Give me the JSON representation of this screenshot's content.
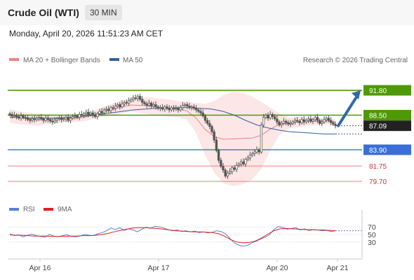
{
  "header": {
    "title": "Crude Oil (WTI)",
    "timeframe": "30 MIN"
  },
  "datetime": "Monday, April 20, 2026 11:51:23 AM CET",
  "legend": {
    "bollinger": "MA 20 + Bollinger Bands",
    "ma50": "MA 50",
    "credit": "Research © 2026 Trading Central",
    "rsi": "RSI",
    "rsi_ma": "9MA"
  },
  "colors": {
    "resistance": "#4e9a06",
    "support": "#3a6fd8",
    "support_secondary": "#f08080",
    "last_price": "#222222",
    "bollinger": "#f08080",
    "bollinger_fill": "#fde3e3",
    "ma50": "#34609a",
    "candle": "#555555",
    "forecast_arrow": "#2f67b1",
    "rsi": "#5b7fd0",
    "rsi_ma": "#e02020"
  },
  "chart_data": [
    {
      "type": "candlestick",
      "x_labels": [
        "Apr 16",
        "Apr 17",
        "Apr 20",
        "Apr 21"
      ],
      "ylim": [
        78.5,
        94.5
      ],
      "levels": [
        {
          "value": 91.8,
          "label": "91.80",
          "kind": "resistance"
        },
        {
          "value": 88.5,
          "label": "88.50",
          "kind": "resistance"
        },
        {
          "value": 87.09,
          "label": "87.09",
          "kind": "last"
        },
        {
          "value": 83.9,
          "label": "83.90",
          "kind": "support"
        },
        {
          "value": 81.75,
          "label": "81.75",
          "kind": "support_secondary"
        },
        {
          "value": 79.7,
          "label": "79.70",
          "kind": "support_secondary"
        }
      ],
      "close": [
        88.6,
        88.4,
        88.5,
        88.3,
        88.1,
        88.4,
        88.2,
        88.1,
        87.9,
        87.8,
        88.0,
        87.9,
        88.1,
        88.2,
        88.0,
        87.8,
        88.1,
        87.9,
        87.7,
        87.6,
        87.8,
        88.0,
        88.1,
        87.9,
        88.0,
        88.2,
        87.8,
        88.1,
        88.3,
        88.4,
        88.2,
        88.6,
        88.5,
        88.7,
        88.9,
        88.6,
        88.8,
        88.5,
        88.3,
        88.7,
        89.0,
        88.8,
        89.2,
        89.3,
        89.1,
        89.5,
        89.4,
        89.7,
        89.9,
        89.6,
        90.0,
        90.2,
        90.1,
        90.4,
        90.6,
        90.8,
        90.7,
        91.0,
        90.6,
        90.2,
        90.0,
        89.8,
        90.1,
        89.7,
        89.9,
        89.6,
        89.4,
        89.5,
        89.3,
        89.6,
        89.4,
        89.2,
        89.5,
        89.3,
        89.4,
        89.2,
        89.5,
        89.8,
        89.9,
        89.7,
        89.5,
        89.6,
        89.4,
        89.2,
        89.0,
        88.8,
        88.4,
        87.8,
        87.4,
        87.0,
        86.3,
        85.2,
        83.8,
        82.5,
        81.7,
        81.2,
        80.4,
        80.8,
        81.0,
        81.5,
        81.3,
        81.8,
        82.0,
        82.3,
        82.0,
        82.6,
        82.8,
        83.2,
        83.4,
        83.6,
        83.9,
        83.6,
        87.2,
        88.2,
        88.5,
        88.1,
        88.6,
        88.3,
        88.0,
        87.6,
        87.2,
        87.4,
        87.7,
        87.5,
        87.3,
        87.4,
        87.6,
        87.8,
        87.7,
        87.5,
        87.9,
        87.6,
        87.8,
        88.0,
        87.7,
        87.9,
        88.2,
        87.8,
        87.4,
        87.6,
        87.9,
        88.1,
        87.8,
        87.5,
        87.3,
        87.1
      ],
      "bollinger": {
        "upper": [
          89.3,
          89.0,
          88.8,
          88.7,
          88.6,
          88.6,
          88.5,
          88.6,
          88.7,
          89.1,
          89.6,
          90.0,
          90.5,
          90.7,
          90.8,
          90.9,
          90.7,
          90.6,
          90.4,
          90.3,
          90.1,
          90.0,
          90.4,
          91.2,
          91.6,
          91.5,
          91.0,
          90.3,
          89.5,
          88.7,
          88.2,
          88.3,
          88.2,
          88.1,
          88.2,
          87.9
        ],
        "lower": [
          87.5,
          87.3,
          87.2,
          87.1,
          87.3,
          87.4,
          87.5,
          87.6,
          87.7,
          88.0,
          88.3,
          88.4,
          88.7,
          89.0,
          88.8,
          88.6,
          88.4,
          88.3,
          88.2,
          87.9,
          86.2,
          83.2,
          80.8,
          79.4,
          79.1,
          79.3,
          79.9,
          81.3,
          83.8,
          85.9,
          86.7,
          86.9,
          87.1,
          87.2,
          87.3,
          87.3
        ]
      },
      "ma50": [
        88.2,
        88.2,
        88.1,
        88.1,
        88.1,
        88.2,
        88.3,
        88.4,
        88.6,
        88.8,
        89.0,
        89.2,
        89.3,
        89.4,
        89.4,
        89.5,
        89.5,
        89.4,
        89.3,
        89.0,
        88.5,
        87.8,
        87.2,
        86.8,
        86.5,
        86.3,
        86.2,
        86.1,
        86.0,
        86.0
      ],
      "forecast": {
        "from": 87.09,
        "to": 91.8
      }
    },
    {
      "type": "line",
      "name": "RSI",
      "ylim": [
        0,
        100
      ],
      "reference_lines": [
        70,
        50,
        30
      ],
      "tick_labels": [
        "70",
        "50",
        "30"
      ],
      "series": [
        {
          "name": "RSI",
          "values": [
            52,
            47,
            49,
            44,
            48,
            51,
            47,
            45,
            43,
            50,
            46,
            44,
            47,
            49,
            45,
            44,
            46,
            50,
            48,
            47,
            52,
            55,
            60,
            67,
            63,
            68,
            61,
            65,
            62,
            57,
            64,
            69,
            66,
            72,
            70,
            67,
            63,
            60,
            62,
            58,
            60,
            57,
            59,
            55,
            57,
            54,
            56,
            60,
            58,
            52,
            40,
            28,
            22,
            19,
            21,
            28,
            32,
            38,
            43,
            49,
            63,
            71,
            69,
            64,
            66,
            68,
            62,
            65,
            60,
            63,
            62,
            60,
            61,
            58,
            60
          ]
        },
        {
          "name": "9MA",
          "values": [
            49,
            48,
            48,
            47,
            46,
            46,
            46,
            45,
            45,
            45,
            46,
            46,
            47,
            47,
            48,
            50,
            53,
            57,
            61,
            64,
            67,
            68,
            68,
            67,
            66,
            64,
            62,
            60,
            59,
            58,
            57,
            57,
            56,
            55,
            52,
            45,
            36,
            30,
            28,
            29,
            33,
            41,
            51,
            60,
            65,
            66,
            65,
            64,
            63,
            63,
            62,
            62,
            61,
            60
          ]
        }
      ]
    }
  ]
}
